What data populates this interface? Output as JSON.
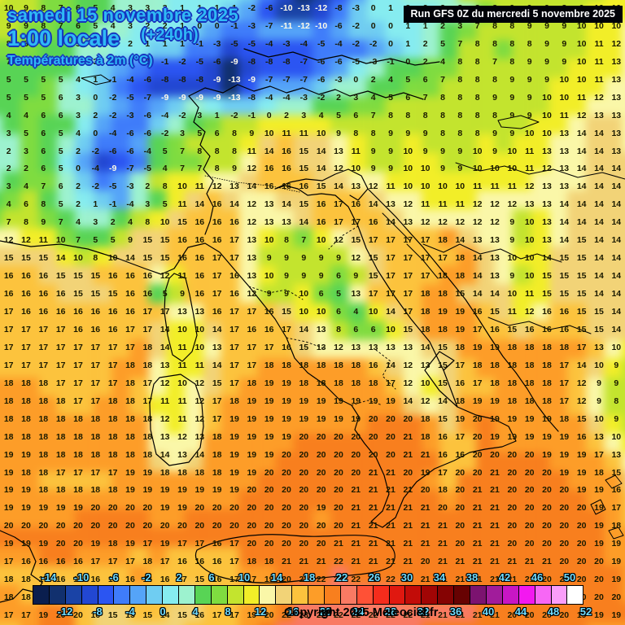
{
  "header": {
    "date_line": "samedi 15 novembre 2025",
    "time_line": "1:00 locale",
    "offset_label": "(+240h)",
    "param_line": "Températures à 2m (°C)",
    "text_color": "#2fb9f5",
    "outline_color": "#1634bf"
  },
  "run_info": {
    "label": "Run GFS 0Z du mercredi 5 novembre 2025",
    "bg": "#000208",
    "fg": "#ffffff"
  },
  "copyright": "Copyright 2025 Meteociel.fr",
  "scale": {
    "band_start": -16,
    "band_step": 2,
    "colors": [
      "#0a1e4e",
      "#11306e",
      "#1a43a6",
      "#2247d2",
      "#2b55f2",
      "#3f7cfa",
      "#55a4f8",
      "#6fcdf2",
      "#86ecf0",
      "#9df2cf",
      "#58d455",
      "#7fdc40",
      "#c3e42e",
      "#f2ee28",
      "#faf7a8",
      "#f2d377",
      "#fcc33d",
      "#fd9d28",
      "#f87f1e",
      "#f97a63",
      "#ff5136",
      "#f52c1c",
      "#e01810",
      "#c20c08",
      "#a10505",
      "#850303",
      "#670202",
      "#7c1370",
      "#a11c9b",
      "#c816c4",
      "#f318f0",
      "#f767f5",
      "#fa9ef9",
      "#ffffff"
    ],
    "top_labels": [
      "-14",
      "-10",
      "-6",
      "-2",
      "2",
      "6",
      "10",
      "14",
      "18",
      "22",
      "26",
      "30",
      "34",
      "38",
      "42",
      "46",
      "50"
    ],
    "bottom_labels": [
      "-12",
      "-8",
      "-4",
      "0",
      "4",
      "8",
      "12",
      "16",
      "20",
      "24",
      "28",
      "32",
      "36",
      "40",
      "44",
      "48",
      "52"
    ],
    "label_color": "#6fdcff"
  },
  "grid": {
    "cols": 36,
    "rows": 35,
    "cold_text_threshold": -9,
    "values": [
      [
        10,
        9,
        8,
        7,
        6,
        5,
        4,
        3,
        3,
        3,
        1,
        1,
        1,
        1,
        -2,
        -6,
        -10,
        -13,
        -12,
        -8,
        -3,
        0,
        1,
        2,
        2,
        3,
        8,
        8,
        8,
        9,
        9,
        9,
        8,
        9,
        10,
        10
      ],
      [
        9,
        9,
        8,
        7,
        6,
        5,
        4,
        3,
        2,
        2,
        1,
        0,
        0,
        -1,
        -3,
        -7,
        -11,
        -12,
        -10,
        -6,
        -2,
        0,
        0,
        1,
        1,
        2,
        3,
        7,
        8,
        8,
        9,
        9,
        9,
        10,
        10,
        10
      ],
      [
        8,
        8,
        7,
        6,
        5,
        4,
        3,
        2,
        1,
        1,
        1,
        -1,
        -3,
        -5,
        -5,
        -4,
        -3,
        -4,
        -5,
        -4,
        -2,
        -2,
        0,
        1,
        2,
        5,
        7,
        8,
        8,
        8,
        8,
        9,
        9,
        10,
        11,
        12
      ],
      [
        7,
        7,
        6,
        5,
        4,
        3,
        2,
        1,
        0,
        -1,
        -2,
        -5,
        -6,
        -9,
        -8,
        -8,
        -8,
        -7,
        -6,
        -6,
        -5,
        -3,
        -1,
        0,
        2,
        4,
        8,
        8,
        7,
        8,
        9,
        9,
        9,
        10,
        11,
        13
      ],
      [
        5,
        5,
        5,
        5,
        4,
        1,
        -1,
        -4,
        -6,
        -8,
        -8,
        -8,
        -9,
        -13,
        -9,
        -7,
        -7,
        -7,
        -6,
        -3,
        0,
        2,
        4,
        5,
        6,
        7,
        8,
        8,
        8,
        9,
        9,
        9,
        10,
        10,
        11,
        13
      ],
      [
        5,
        5,
        5,
        6,
        3,
        0,
        -2,
        -5,
        -7,
        -9,
        -9,
        -9,
        -9,
        -13,
        -8,
        -4,
        -4,
        -3,
        -2,
        2,
        3,
        4,
        5,
        6,
        7,
        8,
        8,
        8,
        9,
        9,
        9,
        10,
        10,
        11,
        12,
        13
      ],
      [
        4,
        4,
        6,
        6,
        3,
        2,
        -2,
        -3,
        -6,
        -4,
        -2,
        3,
        1,
        -2,
        -1,
        0,
        2,
        3,
        4,
        5,
        6,
        7,
        8,
        8,
        8,
        8,
        8,
        8,
        8,
        9,
        9,
        10,
        11,
        12,
        13,
        13
      ],
      [
        3,
        5,
        6,
        5,
        4,
        0,
        -4,
        -6,
        -6,
        -2,
        3,
        5,
        6,
        8,
        9,
        10,
        11,
        11,
        10,
        9,
        8,
        8,
        9,
        9,
        9,
        8,
        8,
        8,
        9,
        9,
        10,
        10,
        13,
        14,
        14,
        13
      ],
      [
        2,
        3,
        6,
        5,
        2,
        -2,
        -6,
        -6,
        -4,
        5,
        7,
        8,
        8,
        8,
        11,
        14,
        16,
        15,
        14,
        13,
        11,
        9,
        9,
        10,
        9,
        9,
        9,
        10,
        9,
        10,
        11,
        13,
        13,
        14,
        14,
        13
      ],
      [
        2,
        2,
        6,
        5,
        0,
        -4,
        -9,
        -7,
        -5,
        4,
        7,
        7,
        8,
        9,
        12,
        16,
        16,
        15,
        14,
        12,
        10,
        9,
        9,
        10,
        10,
        9,
        9,
        10,
        10,
        10,
        11,
        12,
        13,
        14,
        14,
        14
      ],
      [
        3,
        4,
        7,
        6,
        2,
        -2,
        -5,
        -3,
        2,
        8,
        10,
        11,
        12,
        13,
        14,
        16,
        16,
        16,
        15,
        14,
        13,
        12,
        11,
        10,
        10,
        10,
        10,
        11,
        11,
        11,
        12,
        13,
        13,
        14,
        14,
        14
      ],
      [
        4,
        6,
        8,
        5,
        2,
        1,
        -1,
        -4,
        3,
        5,
        11,
        14,
        16,
        14,
        12,
        13,
        14,
        15,
        16,
        17,
        16,
        14,
        13,
        12,
        11,
        11,
        11,
        12,
        12,
        12,
        13,
        13,
        14,
        14,
        14,
        14
      ],
      [
        7,
        8,
        9,
        7,
        4,
        3,
        2,
        4,
        8,
        10,
        15,
        16,
        16,
        16,
        12,
        13,
        13,
        14,
        16,
        17,
        17,
        16,
        14,
        13,
        12,
        12,
        12,
        12,
        12,
        9,
        10,
        13,
        14,
        14,
        14,
        14
      ],
      [
        12,
        12,
        11,
        10,
        7,
        5,
        5,
        9,
        15,
        15,
        16,
        16,
        16,
        17,
        13,
        10,
        8,
        7,
        10,
        12,
        15,
        17,
        17,
        17,
        17,
        18,
        14,
        13,
        13,
        9,
        10,
        13,
        14,
        15,
        14,
        14
      ],
      [
        15,
        15,
        15,
        14,
        10,
        8,
        10,
        14,
        15,
        15,
        16,
        16,
        17,
        17,
        13,
        9,
        9,
        9,
        9,
        9,
        12,
        15,
        17,
        17,
        17,
        17,
        18,
        14,
        13,
        10,
        10,
        14,
        15,
        15,
        14,
        14
      ],
      [
        16,
        16,
        16,
        15,
        15,
        15,
        16,
        16,
        16,
        12,
        11,
        16,
        17,
        16,
        13,
        10,
        9,
        9,
        9,
        6,
        9,
        15,
        17,
        17,
        17,
        18,
        18,
        14,
        13,
        9,
        10,
        15,
        15,
        15,
        14,
        14
      ],
      [
        16,
        16,
        16,
        16,
        15,
        15,
        15,
        16,
        16,
        5,
        9,
        16,
        17,
        16,
        12,
        9,
        9,
        10,
        6,
        5,
        13,
        17,
        17,
        17,
        18,
        18,
        15,
        14,
        14,
        10,
        11,
        15,
        15,
        15,
        14,
        14
      ],
      [
        17,
        16,
        16,
        16,
        16,
        16,
        16,
        16,
        17,
        17,
        13,
        13,
        16,
        17,
        17,
        16,
        15,
        10,
        10,
        6,
        4,
        10,
        14,
        17,
        18,
        19,
        19,
        16,
        15,
        11,
        12,
        16,
        16,
        15,
        15,
        14
      ],
      [
        17,
        17,
        17,
        17,
        16,
        16,
        16,
        17,
        17,
        14,
        10,
        10,
        14,
        17,
        16,
        16,
        17,
        14,
        13,
        8,
        6,
        6,
        10,
        15,
        18,
        18,
        19,
        17,
        16,
        15,
        16,
        16,
        16,
        15,
        15,
        14
      ],
      [
        17,
        17,
        17,
        17,
        17,
        17,
        17,
        17,
        18,
        14,
        11,
        10,
        13,
        17,
        17,
        17,
        16,
        15,
        13,
        12,
        13,
        13,
        13,
        13,
        14,
        15,
        18,
        19,
        19,
        18,
        18,
        18,
        18,
        17,
        13,
        10
      ],
      [
        17,
        17,
        17,
        17,
        17,
        17,
        17,
        18,
        18,
        13,
        11,
        11,
        14,
        17,
        17,
        18,
        18,
        18,
        18,
        18,
        18,
        16,
        14,
        12,
        13,
        15,
        17,
        18,
        18,
        18,
        18,
        18,
        17,
        14,
        10,
        9
      ],
      [
        18,
        18,
        18,
        17,
        17,
        17,
        17,
        18,
        17,
        12,
        10,
        12,
        15,
        17,
        18,
        19,
        19,
        18,
        18,
        18,
        18,
        18,
        17,
        12,
        10,
        15,
        16,
        17,
        18,
        18,
        18,
        18,
        17,
        12,
        9,
        9
      ],
      [
        18,
        18,
        18,
        18,
        17,
        17,
        18,
        18,
        17,
        11,
        11,
        12,
        17,
        18,
        19,
        19,
        19,
        19,
        19,
        19,
        19,
        19,
        19,
        14,
        12,
        14,
        18,
        19,
        19,
        18,
        18,
        18,
        17,
        12,
        9,
        8
      ],
      [
        18,
        18,
        18,
        18,
        18,
        18,
        18,
        18,
        18,
        12,
        11,
        12,
        17,
        19,
        19,
        19,
        19,
        19,
        19,
        19,
        19,
        20,
        20,
        20,
        18,
        15,
        19,
        20,
        19,
        19,
        19,
        19,
        18,
        15,
        10,
        9
      ],
      [
        18,
        18,
        18,
        18,
        18,
        18,
        18,
        18,
        18,
        13,
        12,
        13,
        18,
        19,
        19,
        19,
        19,
        20,
        20,
        20,
        20,
        20,
        20,
        21,
        18,
        16,
        17,
        20,
        19,
        19,
        19,
        19,
        19,
        16,
        13,
        10
      ],
      [
        19,
        19,
        18,
        18,
        18,
        18,
        18,
        18,
        18,
        14,
        13,
        14,
        18,
        19,
        19,
        19,
        20,
        20,
        20,
        20,
        20,
        20,
        20,
        21,
        21,
        16,
        16,
        20,
        20,
        20,
        20,
        19,
        19,
        19,
        17,
        13
      ],
      [
        19,
        18,
        18,
        17,
        17,
        17,
        17,
        19,
        19,
        18,
        18,
        18,
        18,
        19,
        19,
        20,
        20,
        20,
        20,
        20,
        20,
        21,
        21,
        20,
        19,
        17,
        20,
        20,
        21,
        20,
        20,
        20,
        19,
        19,
        18,
        15
      ],
      [
        19,
        19,
        18,
        18,
        18,
        18,
        18,
        19,
        19,
        19,
        19,
        19,
        19,
        19,
        20,
        20,
        20,
        20,
        20,
        20,
        21,
        21,
        21,
        21,
        20,
        18,
        20,
        21,
        21,
        20,
        20,
        20,
        20,
        19,
        19,
        16
      ],
      [
        19,
        19,
        19,
        19,
        19,
        20,
        20,
        20,
        20,
        19,
        19,
        20,
        20,
        20,
        20,
        20,
        20,
        20,
        19,
        20,
        21,
        21,
        21,
        21,
        21,
        20,
        20,
        21,
        21,
        20,
        20,
        20,
        20,
        20,
        19,
        17
      ],
      [
        20,
        20,
        20,
        20,
        20,
        20,
        20,
        20,
        20,
        20,
        20,
        20,
        20,
        20,
        20,
        20,
        20,
        20,
        20,
        20,
        21,
        21,
        21,
        21,
        21,
        21,
        20,
        21,
        21,
        20,
        20,
        20,
        20,
        20,
        19,
        18
      ],
      [
        19,
        19,
        19,
        20,
        20,
        19,
        18,
        19,
        17,
        19,
        17,
        17,
        16,
        17,
        20,
        20,
        20,
        20,
        20,
        21,
        21,
        21,
        21,
        21,
        21,
        21,
        20,
        21,
        21,
        20,
        20,
        20,
        20,
        20,
        19,
        19
      ],
      [
        17,
        16,
        16,
        16,
        16,
        17,
        17,
        17,
        18,
        17,
        16,
        16,
        16,
        17,
        18,
        18,
        21,
        21,
        21,
        22,
        21,
        21,
        21,
        21,
        20,
        21,
        21,
        21,
        21,
        21,
        21,
        21,
        20,
        20,
        20,
        19
      ],
      [
        18,
        18,
        17,
        16,
        15,
        16,
        17,
        16,
        16,
        16,
        17,
        15,
        16,
        17,
        17,
        19,
        20,
        22,
        22,
        22,
        22,
        22,
        22,
        21,
        21,
        21,
        21,
        21,
        21,
        21,
        21,
        20,
        20,
        20,
        20,
        19
      ],
      [
        18,
        18,
        19,
        20,
        20,
        17,
        14,
        15,
        16,
        16,
        15,
        15,
        16,
        17,
        18,
        19,
        20,
        22,
        23,
        23,
        22,
        22,
        22,
        23,
        22,
        22,
        22,
        21,
        21,
        21,
        21,
        21,
        20,
        20,
        20,
        20
      ],
      [
        17,
        17,
        19,
        20,
        20,
        16,
        15,
        15,
        15,
        14,
        15,
        16,
        17,
        17,
        19,
        20,
        22,
        23,
        22,
        22,
        22,
        22,
        22,
        22,
        21,
        21,
        21,
        21,
        21,
        20,
        20,
        20,
        20,
        19,
        19,
        19
      ]
    ]
  }
}
